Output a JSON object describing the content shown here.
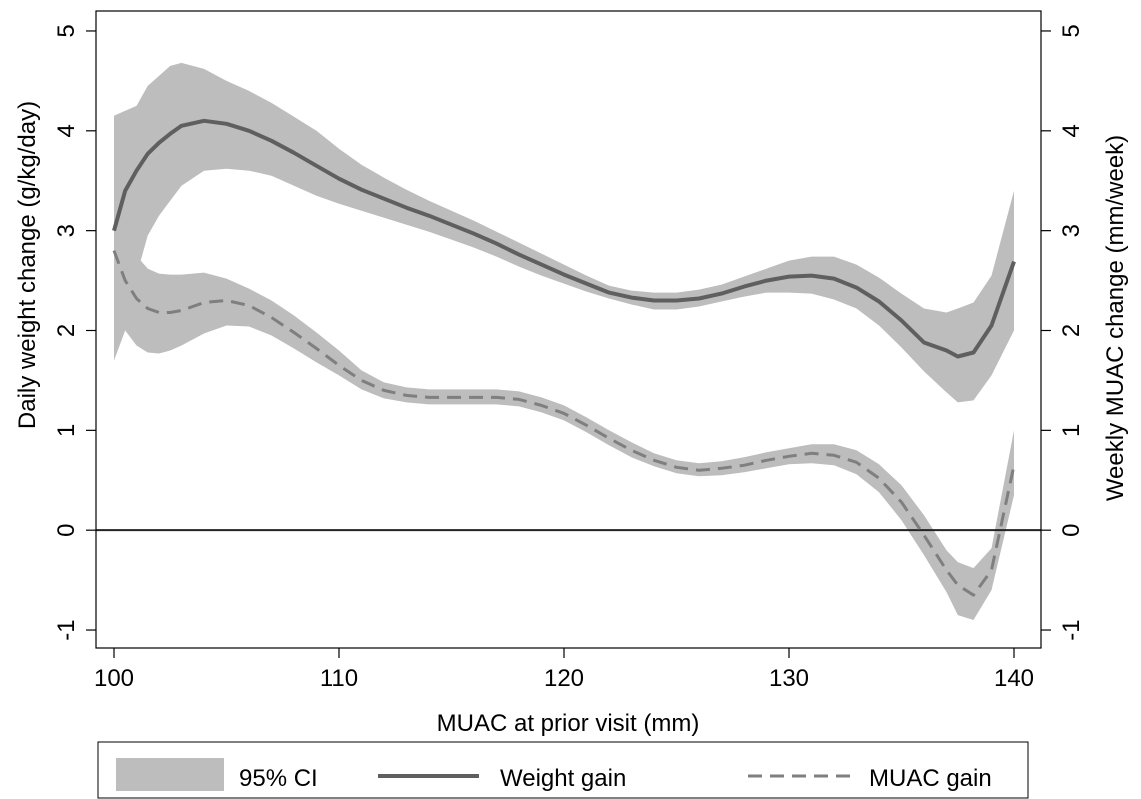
{
  "chart_data": {
    "type": "line",
    "xlabel": "MUAC at prior visit (mm)",
    "ylabel_left": "Daily weight change (g/kg/day)",
    "ylabel_right": "Weekly MUAC change (mm/week)",
    "xlim": [
      99.2,
      141.2
    ],
    "ylim": [
      -1.18,
      5.2
    ],
    "xticks": [
      100,
      110,
      120,
      130,
      140
    ],
    "yticks": [
      -1,
      0,
      1,
      2,
      3,
      4,
      5
    ],
    "reference_line_y": 0,
    "grid": false,
    "legend_position": "bottom",
    "legend": {
      "ci_label": "95% CI",
      "weight_label": "Weight gain",
      "muac_label": "MUAC gain"
    },
    "series": [
      {
        "name": "Weight gain",
        "style": "solid",
        "color": "#5f5f5f",
        "x": [
          100,
          100.5,
          101,
          101.5,
          102,
          102.5,
          103,
          104,
          105,
          106,
          107,
          108,
          109,
          110,
          111,
          112,
          113,
          114,
          115,
          116,
          117,
          118,
          119,
          120,
          121,
          122,
          123,
          124,
          125,
          126,
          127,
          128,
          129,
          130,
          131,
          132,
          133,
          134,
          135,
          136,
          137,
          137.5,
          138.2,
          139,
          140
        ],
        "values": [
          3.0,
          3.4,
          3.6,
          3.77,
          3.88,
          3.97,
          4.05,
          4.1,
          4.07,
          4.0,
          3.9,
          3.78,
          3.65,
          3.52,
          3.41,
          3.32,
          3.23,
          3.15,
          3.06,
          2.97,
          2.87,
          2.76,
          2.66,
          2.56,
          2.47,
          2.38,
          2.33,
          2.3,
          2.3,
          2.32,
          2.37,
          2.44,
          2.5,
          2.54,
          2.55,
          2.52,
          2.43,
          2.29,
          2.1,
          1.88,
          1.8,
          1.74,
          1.78,
          2.05,
          2.69
        ],
        "ci_lower": [
          1.7,
          2.3,
          2.55,
          2.95,
          3.15,
          3.3,
          3.45,
          3.6,
          3.62,
          3.6,
          3.55,
          3.45,
          3.35,
          3.27,
          3.2,
          3.13,
          3.06,
          2.99,
          2.91,
          2.83,
          2.74,
          2.64,
          2.55,
          2.47,
          2.39,
          2.32,
          2.26,
          2.21,
          2.21,
          2.24,
          2.29,
          2.34,
          2.38,
          2.38,
          2.37,
          2.31,
          2.22,
          2.05,
          1.83,
          1.59,
          1.38,
          1.28,
          1.3,
          1.55,
          2.0
        ],
        "ci_upper": [
          4.15,
          4.2,
          4.25,
          4.45,
          4.55,
          4.65,
          4.68,
          4.62,
          4.5,
          4.4,
          4.28,
          4.14,
          4.0,
          3.82,
          3.66,
          3.53,
          3.41,
          3.3,
          3.2,
          3.1,
          2.99,
          2.88,
          2.77,
          2.66,
          2.55,
          2.45,
          2.4,
          2.38,
          2.38,
          2.41,
          2.46,
          2.54,
          2.62,
          2.7,
          2.74,
          2.74,
          2.66,
          2.53,
          2.37,
          2.22,
          2.18,
          2.22,
          2.28,
          2.55,
          3.4
        ]
      },
      {
        "name": "MUAC gain",
        "style": "dashed",
        "color": "#7f7f7f",
        "x": [
          100,
          100.5,
          101,
          101.5,
          102,
          102.5,
          103,
          104,
          105,
          106,
          107,
          108,
          109,
          110,
          111,
          112,
          113,
          114,
          115,
          116,
          117,
          118,
          119,
          120,
          121,
          122,
          123,
          124,
          125,
          126,
          127,
          128,
          129,
          130,
          131,
          132,
          133,
          134,
          135,
          136,
          137,
          137.5,
          138.2,
          139,
          140
        ],
        "values": [
          2.8,
          2.5,
          2.32,
          2.22,
          2.18,
          2.18,
          2.2,
          2.28,
          2.3,
          2.25,
          2.13,
          1.98,
          1.82,
          1.65,
          1.5,
          1.4,
          1.35,
          1.33,
          1.33,
          1.33,
          1.33,
          1.31,
          1.25,
          1.17,
          1.05,
          0.92,
          0.8,
          0.7,
          0.63,
          0.6,
          0.62,
          0.65,
          0.7,
          0.74,
          0.77,
          0.75,
          0.68,
          0.52,
          0.28,
          -0.05,
          -0.4,
          -0.55,
          -0.65,
          -0.4,
          0.65
        ],
        "ci_lower": [
          1.7,
          2.0,
          1.85,
          1.78,
          1.77,
          1.8,
          1.85,
          1.97,
          2.05,
          2.04,
          1.95,
          1.82,
          1.68,
          1.55,
          1.41,
          1.32,
          1.28,
          1.26,
          1.26,
          1.26,
          1.26,
          1.24,
          1.18,
          1.1,
          0.98,
          0.85,
          0.73,
          0.64,
          0.57,
          0.54,
          0.55,
          0.58,
          0.62,
          0.66,
          0.67,
          0.65,
          0.56,
          0.38,
          0.1,
          -0.25,
          -0.62,
          -0.85,
          -0.9,
          -0.6,
          0.35
        ],
        "ci_upper": [
          3.45,
          3.15,
          2.75,
          2.62,
          2.57,
          2.56,
          2.56,
          2.58,
          2.52,
          2.42,
          2.3,
          2.15,
          1.98,
          1.8,
          1.6,
          1.48,
          1.43,
          1.41,
          1.41,
          1.41,
          1.41,
          1.39,
          1.33,
          1.25,
          1.13,
          1.0,
          0.88,
          0.77,
          0.7,
          0.67,
          0.69,
          0.73,
          0.78,
          0.82,
          0.86,
          0.86,
          0.8,
          0.66,
          0.45,
          0.15,
          -0.2,
          -0.32,
          -0.38,
          -0.18,
          1.0
        ]
      }
    ]
  },
  "colors": {
    "ci_band": "#bdbdbd",
    "axis": "#000000",
    "background": "#ffffff"
  }
}
